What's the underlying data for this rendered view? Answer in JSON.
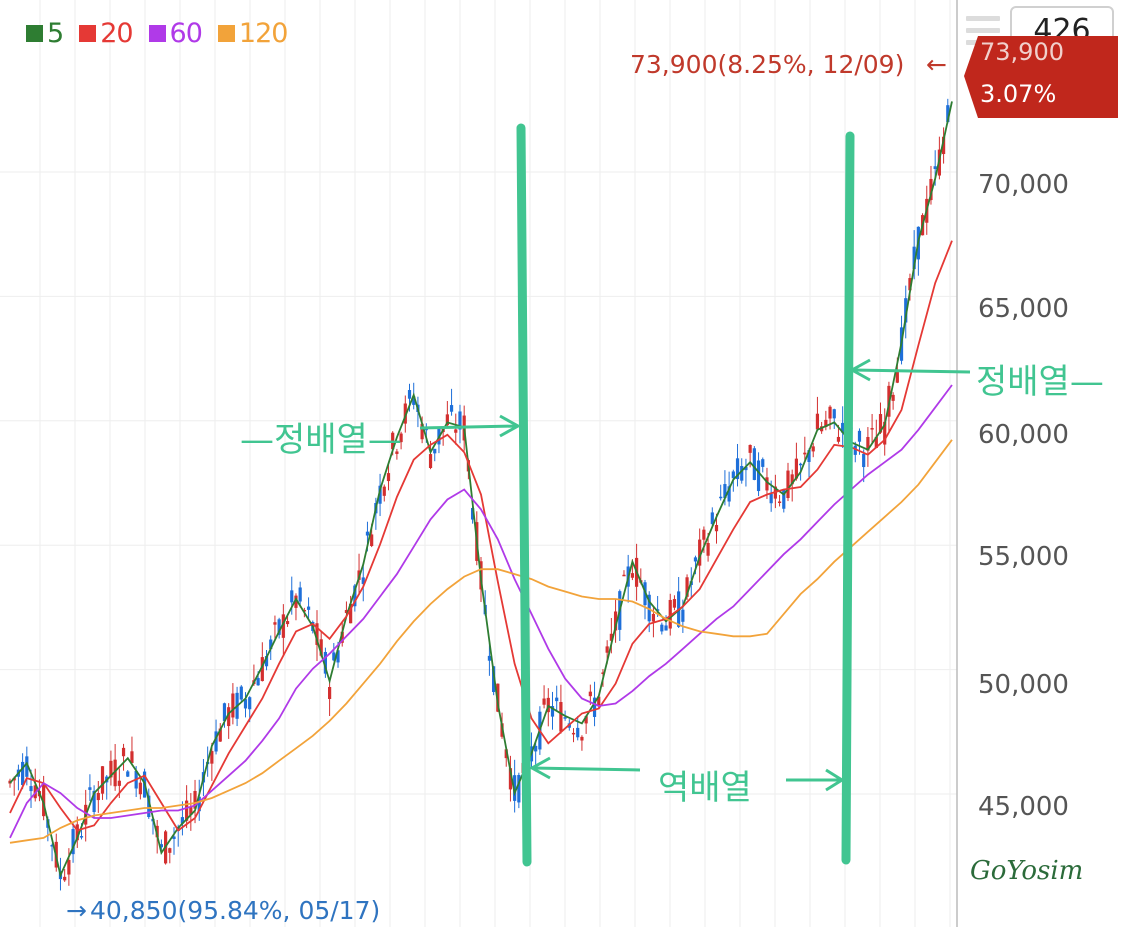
{
  "legend": [
    {
      "label": "5",
      "color": "#2e7d32"
    },
    {
      "label": "20",
      "color": "#e53935"
    },
    {
      "label": "60",
      "color": "#b03ae8"
    },
    {
      "label": "120",
      "color": "#f2a33a"
    }
  ],
  "toolbar": {
    "menu_icon": "menu-icon",
    "count": "426"
  },
  "price_tag": {
    "price": "73,900",
    "change": "3.07%",
    "color": "#c0271c"
  },
  "high_marker": {
    "text": "73,900(8.25%, 12/09)",
    "arrow": "←"
  },
  "low_marker": {
    "text": "40,850(95.84%, 05/17)",
    "arrow": "→"
  },
  "annotations": {
    "left_label": "—정배열—",
    "right_label": "정배열—",
    "middle_label": "역배열",
    "signature": "GoYosim",
    "color": "#41c591"
  },
  "chart_data": {
    "type": "line",
    "y_ticks": [
      "45,000",
      "50,000",
      "55,000",
      "60,000",
      "65,000",
      "70,000"
    ],
    "ylim": [
      40000,
      75500
    ],
    "grid": true,
    "series": [
      {
        "name": "5",
        "color": "#2e7d32",
        "values": [
          46000,
          46800,
          45200,
          42300,
          43800,
          45600,
          46300,
          47000,
          46000,
          43200,
          44200,
          44900,
          47500,
          48800,
          49400,
          50700,
          52100,
          53400,
          52300,
          50100,
          52700,
          54800,
          57800,
          59900,
          61600,
          59300,
          60500,
          60300,
          54200,
          49200,
          45600,
          47200,
          49100,
          48700,
          48400,
          49500,
          52300,
          54900,
          53300,
          52500,
          53100,
          55100,
          56700,
          58200,
          58900,
          58100,
          57600,
          58500,
          60200,
          60500,
          59700,
          59400,
          60400,
          63700,
          67800,
          70300,
          73400
        ]
      },
      {
        "name": "20",
        "color": "#e53935",
        "values": [
          44800,
          46200,
          46000,
          45000,
          44100,
          44300,
          45200,
          46000,
          46300,
          45200,
          44100,
          44600,
          45900,
          47200,
          48300,
          49400,
          50800,
          52100,
          52400,
          51800,
          52700,
          53900,
          55600,
          57500,
          59000,
          59600,
          60000,
          59300,
          57600,
          54100,
          50800,
          48600,
          47600,
          48200,
          48800,
          49000,
          50000,
          51600,
          52400,
          52600,
          53100,
          53800,
          55000,
          56200,
          57300,
          57600,
          57800,
          57900,
          58600,
          59600,
          59500,
          59200,
          59800,
          61000,
          63600,
          66100,
          67800
        ]
      },
      {
        "name": "60",
        "color": "#b03ae8",
        "values": [
          43800,
          45200,
          46000,
          45600,
          45000,
          44600,
          44600,
          44700,
          44800,
          44900,
          44900,
          45100,
          45700,
          46300,
          46900,
          47700,
          48600,
          49800,
          50600,
          51200,
          51900,
          52600,
          53500,
          54400,
          55500,
          56600,
          57400,
          57800,
          57000,
          55800,
          54200,
          52800,
          51400,
          50200,
          49400,
          49100,
          49200,
          49700,
          50300,
          50800,
          51400,
          52000,
          52600,
          53100,
          53800,
          54500,
          55200,
          55800,
          56500,
          57200,
          57800,
          58400,
          58900,
          59400,
          60200,
          61100,
          62000
        ]
      },
      {
        "name": "120",
        "color": "#f2a33a",
        "values": [
          43600,
          43700,
          43800,
          44200,
          44500,
          44700,
          44800,
          44900,
          45000,
          45000,
          45100,
          45200,
          45400,
          45700,
          46000,
          46400,
          46900,
          47400,
          47900,
          48500,
          49200,
          50000,
          50800,
          51700,
          52500,
          53200,
          53800,
          54300,
          54600,
          54600,
          54400,
          54200,
          53900,
          53700,
          53500,
          53400,
          53400,
          53300,
          53000,
          52600,
          52300,
          52100,
          52000,
          51900,
          51900,
          52000,
          52800,
          53600,
          54200,
          54900,
          55500,
          56100,
          56700,
          57300,
          58000,
          58900,
          59800
        ]
      }
    ]
  }
}
